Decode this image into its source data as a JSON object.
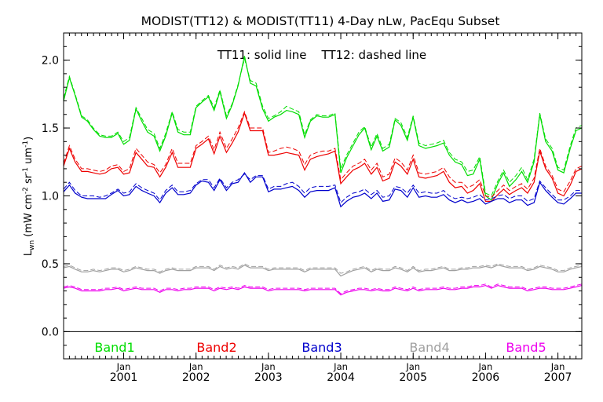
{
  "chart_data": {
    "type": "line",
    "title": "MODIST(TT12) & MODIST(TT11) 4-Day nLw, PacEqu Subset",
    "annotation": "TT11: solid line    TT12: dashed line",
    "ylabel": "L_wn (mW cm^-2 sr^-1 um^-1)",
    "ylim": [
      -0.2,
      2.2
    ],
    "y_ticks": [
      "0.0",
      "0.5",
      "1.0",
      "1.5",
      "2.0"
    ],
    "x_range": [
      2000.17,
      2007.33
    ],
    "x_ticks": [
      {
        "x": 2001.0,
        "month": "Jan",
        "year": "2001"
      },
      {
        "x": 2002.0,
        "month": "Jan",
        "year": "2002"
      },
      {
        "x": 2003.0,
        "month": "Jan",
        "year": "2003"
      },
      {
        "x": 2004.0,
        "month": "Jan",
        "year": "2004"
      },
      {
        "x": 2005.0,
        "month": "Jan",
        "year": "2005"
      },
      {
        "x": 2006.0,
        "month": "Jan",
        "year": "2006"
      },
      {
        "x": 2007.0,
        "month": "Jan",
        "year": "2007"
      }
    ],
    "zero_line": 0.0,
    "legend_placement": "bottom, inside plot",
    "x": [
      2000.17,
      2000.25,
      2000.33,
      2000.42,
      2000.5,
      2000.58,
      2000.67,
      2000.75,
      2000.83,
      2000.92,
      2001.0,
      2001.08,
      2001.17,
      2001.25,
      2001.33,
      2001.42,
      2001.5,
      2001.58,
      2001.67,
      2001.75,
      2001.83,
      2001.92,
      2002.0,
      2002.08,
      2002.17,
      2002.25,
      2002.33,
      2002.42,
      2002.5,
      2002.58,
      2002.67,
      2002.75,
      2002.83,
      2002.92,
      2003.0,
      2003.08,
      2003.17,
      2003.25,
      2003.33,
      2003.42,
      2003.5,
      2003.58,
      2003.67,
      2003.75,
      2003.83,
      2003.92,
      2004.0,
      2004.08,
      2004.17,
      2004.25,
      2004.33,
      2004.42,
      2004.5,
      2004.58,
      2004.67,
      2004.75,
      2004.83,
      2004.92,
      2005.0,
      2005.08,
      2005.17,
      2005.25,
      2005.33,
      2005.42,
      2005.5,
      2005.58,
      2005.67,
      2005.75,
      2005.83,
      2005.92,
      2006.0,
      2006.08,
      2006.17,
      2006.25,
      2006.33,
      2006.42,
      2006.5,
      2006.58,
      2006.67,
      2006.75,
      2006.83,
      2006.92,
      2007.0,
      2007.08,
      2007.17,
      2007.25,
      2007.33
    ],
    "series": [
      {
        "name": "Band1",
        "color": "#00dd00",
        "tt11": [
          1.7,
          1.87,
          1.74,
          1.58,
          1.55,
          1.49,
          1.44,
          1.43,
          1.43,
          1.46,
          1.38,
          1.41,
          1.64,
          1.55,
          1.47,
          1.44,
          1.33,
          1.44,
          1.61,
          1.47,
          1.45,
          1.45,
          1.65,
          1.69,
          1.73,
          1.63,
          1.77,
          1.57,
          1.67,
          1.81,
          2.03,
          1.83,
          1.81,
          1.64,
          1.55,
          1.58,
          1.6,
          1.63,
          1.62,
          1.6,
          1.43,
          1.55,
          1.59,
          1.58,
          1.58,
          1.6,
          1.17,
          1.28,
          1.37,
          1.45,
          1.5,
          1.34,
          1.44,
          1.33,
          1.36,
          1.56,
          1.52,
          1.41,
          1.58,
          1.37,
          1.35,
          1.36,
          1.37,
          1.39,
          1.3,
          1.25,
          1.23,
          1.15,
          1.16,
          1.27,
          1.0,
          0.97,
          1.09,
          1.17,
          1.07,
          1.12,
          1.18,
          1.1,
          1.25,
          1.6,
          1.4,
          1.33,
          1.19,
          1.17,
          1.35,
          1.48,
          1.5
        ],
        "tt12": [
          1.72,
          1.88,
          1.75,
          1.59,
          1.56,
          1.5,
          1.45,
          1.44,
          1.44,
          1.47,
          1.4,
          1.43,
          1.65,
          1.57,
          1.49,
          1.46,
          1.35,
          1.46,
          1.62,
          1.49,
          1.47,
          1.47,
          1.66,
          1.7,
          1.74,
          1.65,
          1.78,
          1.59,
          1.68,
          1.82,
          2.01,
          1.85,
          1.83,
          1.66,
          1.57,
          1.59,
          1.62,
          1.66,
          1.64,
          1.62,
          1.45,
          1.56,
          1.6,
          1.59,
          1.59,
          1.61,
          1.2,
          1.3,
          1.39,
          1.47,
          1.51,
          1.36,
          1.46,
          1.35,
          1.38,
          1.57,
          1.54,
          1.43,
          1.59,
          1.39,
          1.37,
          1.38,
          1.39,
          1.41,
          1.32,
          1.27,
          1.25,
          1.18,
          1.19,
          1.29,
          1.02,
          1.0,
          1.11,
          1.19,
          1.1,
          1.15,
          1.21,
          1.12,
          1.27,
          1.61,
          1.42,
          1.35,
          1.21,
          1.19,
          1.37,
          1.5,
          1.52
        ]
      },
      {
        "name": "Band2",
        "color": "#ee0000",
        "tt11": [
          1.22,
          1.35,
          1.25,
          1.18,
          1.18,
          1.17,
          1.16,
          1.17,
          1.2,
          1.21,
          1.16,
          1.17,
          1.32,
          1.27,
          1.22,
          1.21,
          1.14,
          1.21,
          1.32,
          1.21,
          1.21,
          1.21,
          1.35,
          1.38,
          1.42,
          1.31,
          1.44,
          1.32,
          1.39,
          1.47,
          1.61,
          1.48,
          1.48,
          1.48,
          1.3,
          1.3,
          1.31,
          1.32,
          1.31,
          1.3,
          1.19,
          1.27,
          1.29,
          1.3,
          1.31,
          1.33,
          1.09,
          1.14,
          1.19,
          1.21,
          1.24,
          1.16,
          1.21,
          1.11,
          1.13,
          1.25,
          1.22,
          1.16,
          1.27,
          1.14,
          1.13,
          1.14,
          1.15,
          1.18,
          1.1,
          1.06,
          1.07,
          1.02,
          1.04,
          1.09,
          0.96,
          0.96,
          1.01,
          1.05,
          1.01,
          1.04,
          1.06,
          1.02,
          1.1,
          1.33,
          1.2,
          1.13,
          1.02,
          1.0,
          1.08,
          1.18,
          1.2
        ],
        "tt12": [
          1.24,
          1.37,
          1.27,
          1.2,
          1.2,
          1.19,
          1.18,
          1.19,
          1.22,
          1.23,
          1.18,
          1.2,
          1.35,
          1.3,
          1.25,
          1.23,
          1.17,
          1.23,
          1.35,
          1.24,
          1.24,
          1.24,
          1.37,
          1.4,
          1.44,
          1.34,
          1.47,
          1.35,
          1.42,
          1.5,
          1.62,
          1.5,
          1.5,
          1.5,
          1.32,
          1.33,
          1.35,
          1.36,
          1.35,
          1.33,
          1.23,
          1.3,
          1.32,
          1.33,
          1.33,
          1.35,
          1.12,
          1.17,
          1.22,
          1.24,
          1.27,
          1.19,
          1.24,
          1.14,
          1.16,
          1.28,
          1.25,
          1.19,
          1.3,
          1.17,
          1.16,
          1.17,
          1.18,
          1.21,
          1.14,
          1.1,
          1.1,
          1.06,
          1.08,
          1.12,
          1.0,
          0.99,
          1.04,
          1.08,
          1.04,
          1.07,
          1.09,
          1.05,
          1.13,
          1.35,
          1.22,
          1.15,
          1.05,
          1.03,
          1.11,
          1.2,
          1.22
        ]
      },
      {
        "name": "Band3",
        "color": "#0000cc",
        "tt11": [
          1.03,
          1.08,
          1.02,
          0.99,
          0.98,
          0.98,
          0.98,
          0.98,
          1.01,
          1.04,
          1.0,
          1.01,
          1.07,
          1.04,
          1.02,
          1.0,
          0.95,
          1.02,
          1.06,
          1.01,
          1.01,
          1.02,
          1.08,
          1.11,
          1.1,
          1.04,
          1.12,
          1.04,
          1.09,
          1.1,
          1.17,
          1.1,
          1.14,
          1.14,
          1.03,
          1.05,
          1.05,
          1.06,
          1.07,
          1.04,
          0.99,
          1.03,
          1.04,
          1.04,
          1.04,
          1.06,
          0.92,
          0.96,
          0.99,
          1.0,
          1.02,
          0.98,
          1.02,
          0.96,
          0.97,
          1.05,
          1.04,
          0.99,
          1.06,
          0.99,
          1.0,
          0.99,
          0.99,
          1.01,
          0.97,
          0.95,
          0.97,
          0.95,
          0.96,
          0.98,
          0.94,
          0.96,
          0.98,
          0.98,
          0.95,
          0.97,
          0.97,
          0.93,
          0.95,
          1.1,
          1.04,
          0.99,
          0.95,
          0.94,
          0.98,
          1.02,
          1.02
        ],
        "tt12": [
          1.05,
          1.1,
          1.04,
          1.0,
          1.0,
          1.0,
          0.99,
          1.0,
          1.02,
          1.05,
          1.02,
          1.03,
          1.09,
          1.06,
          1.04,
          1.02,
          0.97,
          1.04,
          1.08,
          1.03,
          1.03,
          1.04,
          1.09,
          1.12,
          1.12,
          1.06,
          1.13,
          1.06,
          1.1,
          1.12,
          1.16,
          1.12,
          1.15,
          1.15,
          1.05,
          1.07,
          1.07,
          1.09,
          1.1,
          1.07,
          1.02,
          1.06,
          1.07,
          1.07,
          1.07,
          1.08,
          0.95,
          0.99,
          1.02,
          1.03,
          1.05,
          1.01,
          1.04,
          0.99,
          1.0,
          1.07,
          1.06,
          1.02,
          1.08,
          1.02,
          1.03,
          1.02,
          1.02,
          1.04,
          1.0,
          0.98,
          0.99,
          0.98,
          0.99,
          1.01,
          0.97,
          0.98,
          1.0,
          1.01,
          0.98,
          1.0,
          1.0,
          0.96,
          0.98,
          1.11,
          1.06,
          1.01,
          0.97,
          0.97,
          1.0,
          1.04,
          1.04
        ]
      },
      {
        "name": "Band4",
        "color": "#a0a0a0",
        "tt11": [
          0.47,
          0.48,
          0.46,
          0.44,
          0.44,
          0.45,
          0.44,
          0.45,
          0.46,
          0.46,
          0.44,
          0.45,
          0.47,
          0.46,
          0.45,
          0.45,
          0.43,
          0.45,
          0.46,
          0.45,
          0.45,
          0.45,
          0.47,
          0.47,
          0.47,
          0.45,
          0.48,
          0.46,
          0.47,
          0.46,
          0.49,
          0.47,
          0.47,
          0.47,
          0.45,
          0.46,
          0.46,
          0.46,
          0.46,
          0.46,
          0.44,
          0.46,
          0.46,
          0.46,
          0.46,
          0.46,
          0.41,
          0.43,
          0.45,
          0.46,
          0.47,
          0.44,
          0.46,
          0.45,
          0.45,
          0.47,
          0.46,
          0.44,
          0.47,
          0.44,
          0.45,
          0.45,
          0.46,
          0.47,
          0.45,
          0.45,
          0.46,
          0.46,
          0.47,
          0.47,
          0.48,
          0.47,
          0.49,
          0.48,
          0.47,
          0.47,
          0.47,
          0.45,
          0.46,
          0.48,
          0.47,
          0.46,
          0.44,
          0.44,
          0.46,
          0.47,
          0.48
        ],
        "tt12": [
          0.48,
          0.49,
          0.47,
          0.45,
          0.45,
          0.46,
          0.45,
          0.46,
          0.47,
          0.47,
          0.45,
          0.46,
          0.48,
          0.47,
          0.46,
          0.46,
          0.44,
          0.46,
          0.47,
          0.46,
          0.46,
          0.46,
          0.48,
          0.48,
          0.48,
          0.46,
          0.49,
          0.47,
          0.48,
          0.47,
          0.5,
          0.48,
          0.48,
          0.48,
          0.46,
          0.47,
          0.47,
          0.47,
          0.47,
          0.47,
          0.45,
          0.47,
          0.47,
          0.47,
          0.47,
          0.47,
          0.43,
          0.44,
          0.46,
          0.47,
          0.48,
          0.45,
          0.47,
          0.46,
          0.46,
          0.48,
          0.47,
          0.45,
          0.48,
          0.45,
          0.46,
          0.46,
          0.47,
          0.48,
          0.46,
          0.46,
          0.47,
          0.47,
          0.48,
          0.48,
          0.49,
          0.48,
          0.5,
          0.49,
          0.48,
          0.48,
          0.48,
          0.46,
          0.47,
          0.49,
          0.48,
          0.47,
          0.45,
          0.45,
          0.47,
          0.48,
          0.49
        ]
      },
      {
        "name": "Band5",
        "color": "#ee00ee",
        "tt11": [
          0.32,
          0.33,
          0.32,
          0.3,
          0.3,
          0.3,
          0.3,
          0.31,
          0.31,
          0.32,
          0.3,
          0.31,
          0.32,
          0.31,
          0.31,
          0.31,
          0.29,
          0.31,
          0.31,
          0.3,
          0.31,
          0.31,
          0.32,
          0.32,
          0.32,
          0.3,
          0.32,
          0.31,
          0.32,
          0.31,
          0.33,
          0.32,
          0.32,
          0.32,
          0.3,
          0.31,
          0.31,
          0.31,
          0.31,
          0.31,
          0.3,
          0.31,
          0.31,
          0.31,
          0.31,
          0.31,
          0.27,
          0.29,
          0.3,
          0.31,
          0.31,
          0.3,
          0.31,
          0.3,
          0.3,
          0.32,
          0.31,
          0.3,
          0.32,
          0.3,
          0.31,
          0.31,
          0.31,
          0.32,
          0.31,
          0.31,
          0.32,
          0.32,
          0.33,
          0.33,
          0.34,
          0.32,
          0.34,
          0.33,
          0.32,
          0.32,
          0.32,
          0.3,
          0.31,
          0.32,
          0.32,
          0.31,
          0.31,
          0.31,
          0.32,
          0.33,
          0.34
        ],
        "tt12": [
          0.33,
          0.34,
          0.33,
          0.31,
          0.31,
          0.31,
          0.31,
          0.32,
          0.32,
          0.33,
          0.31,
          0.32,
          0.33,
          0.32,
          0.32,
          0.32,
          0.3,
          0.32,
          0.32,
          0.31,
          0.32,
          0.32,
          0.33,
          0.33,
          0.33,
          0.31,
          0.33,
          0.32,
          0.33,
          0.32,
          0.34,
          0.33,
          0.33,
          0.33,
          0.31,
          0.32,
          0.32,
          0.32,
          0.32,
          0.32,
          0.31,
          0.32,
          0.32,
          0.32,
          0.32,
          0.32,
          0.28,
          0.3,
          0.31,
          0.32,
          0.32,
          0.31,
          0.32,
          0.31,
          0.31,
          0.33,
          0.32,
          0.31,
          0.33,
          0.31,
          0.32,
          0.32,
          0.32,
          0.33,
          0.32,
          0.32,
          0.33,
          0.33,
          0.34,
          0.34,
          0.35,
          0.33,
          0.35,
          0.34,
          0.33,
          0.33,
          0.33,
          0.31,
          0.32,
          0.33,
          0.33,
          0.32,
          0.32,
          0.32,
          0.33,
          0.34,
          0.35
        ]
      }
    ]
  }
}
